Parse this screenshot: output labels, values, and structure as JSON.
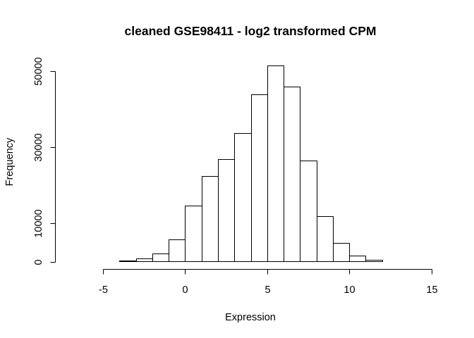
{
  "chart_data": {
    "type": "bar",
    "title": "cleaned GSE98411 - log2 transformed CPM",
    "xlabel": "Expression",
    "ylabel": "Frequency",
    "xlim": [
      -7,
      15
    ],
    "ylim": [
      0,
      52000
    ],
    "x_ticks": [
      -5,
      0,
      5,
      10,
      15
    ],
    "y_ticks": [
      0,
      10000,
      30000,
      50000
    ],
    "bin_width": 1,
    "bins": [
      {
        "x0": -7,
        "x1": -6,
        "count": 0
      },
      {
        "x0": -6,
        "x1": -5,
        "count": 100
      },
      {
        "x0": -5,
        "x1": -4,
        "count": 80
      },
      {
        "x0": -4,
        "x1": -3,
        "count": 350
      },
      {
        "x0": -3,
        "x1": -2,
        "count": 850
      },
      {
        "x0": -2,
        "x1": -1,
        "count": 2200
      },
      {
        "x0": -1,
        "x1": 0,
        "count": 5800
      },
      {
        "x0": 0,
        "x1": 1,
        "count": 14800
      },
      {
        "x0": 1,
        "x1": 2,
        "count": 22400
      },
      {
        "x0": 2,
        "x1": 3,
        "count": 27000
      },
      {
        "x0": 3,
        "x1": 4,
        "count": 33800
      },
      {
        "x0": 4,
        "x1": 5,
        "count": 44000
      },
      {
        "x0": 5,
        "x1": 6,
        "count": 51600
      },
      {
        "x0": 6,
        "x1": 7,
        "count": 46000
      },
      {
        "x0": 7,
        "x1": 8,
        "count": 26600
      },
      {
        "x0": 8,
        "x1": 9,
        "count": 12000
      },
      {
        "x0": 9,
        "x1": 10,
        "count": 4900
      },
      {
        "x0": 10,
        "x1": 11,
        "count": 1600
      },
      {
        "x0": 11,
        "x1": 12,
        "count": 450
      },
      {
        "x0": 12,
        "x1": 13,
        "count": 120
      },
      {
        "x0": 13,
        "x1": 14,
        "count": 0
      },
      {
        "x0": 14,
        "x1": 15,
        "count": 0
      }
    ]
  }
}
